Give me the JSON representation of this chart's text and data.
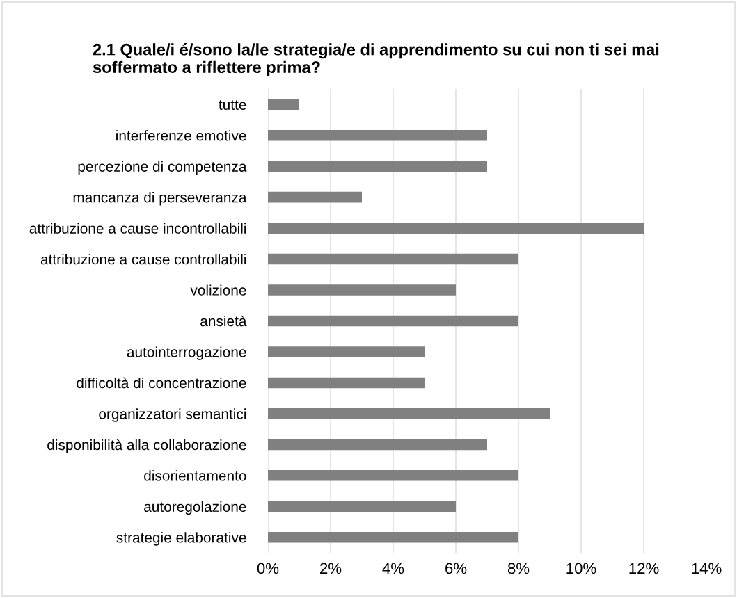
{
  "chart_data": {
    "type": "bar",
    "orientation": "horizontal",
    "title": "2.1 Quale/i é/sono la/le strategia/e di apprendimento su cui non ti sei mai soffermato a riflettere prima?",
    "categories": [
      "tutte",
      "interferenze emotive",
      "percezione di competenza",
      "mancanza di perseveranza",
      "attribuzione a cause incontrollabili",
      "attribuzione a cause controllabili",
      "volizione",
      "ansietà",
      "autointerrogazione",
      "difficoltà di concentrazione",
      "organizzatori semantici",
      "disponibilità alla collaborazione",
      "disorientamento",
      "autoregolazione",
      "strategie elaborative"
    ],
    "values": [
      1,
      7,
      7,
      3,
      12,
      8,
      6,
      8,
      5,
      5,
      9,
      7,
      8,
      6,
      8
    ],
    "color": "#808080",
    "xlim": [
      0,
      14
    ],
    "xticks": [
      {
        "value": 0,
        "label": "0%"
      },
      {
        "value": 2,
        "label": "2%"
      },
      {
        "value": 4,
        "label": "4%"
      },
      {
        "value": 6,
        "label": "6%"
      },
      {
        "value": 8,
        "label": "8%"
      },
      {
        "value": 10,
        "label": "10%"
      },
      {
        "value": 12,
        "label": "12%"
      },
      {
        "value": 14,
        "label": "14%"
      }
    ],
    "grid": "x",
    "legend": false
  }
}
